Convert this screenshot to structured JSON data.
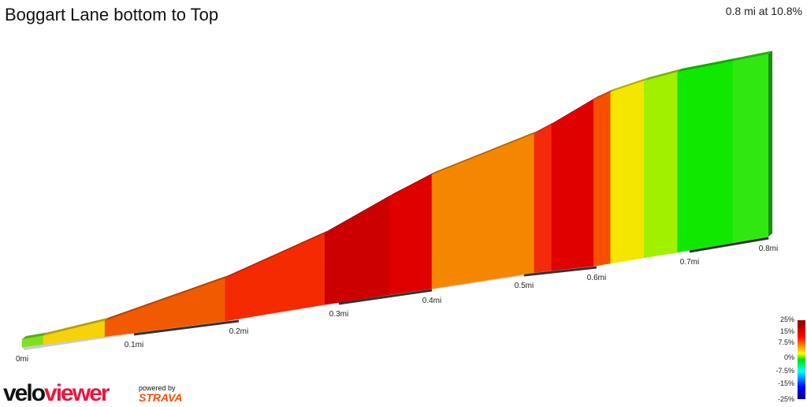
{
  "title": "Boggart Lane bottom to Top",
  "summary": "0.8 mi at 10.8%",
  "chart_data": {
    "type": "area",
    "x_unit": "mi",
    "x_ticks": [
      "0mi",
      "0.1mi",
      "0.2mi",
      "0.3mi",
      "0.4mi",
      "0.5mi",
      "0.6mi",
      "0.7mi",
      "0.8mi"
    ],
    "xlim": [
      0,
      0.8
    ],
    "segments": [
      {
        "start": 0,
        "end": 0.019,
        "gradient": 2,
        "color": "#7fe01c"
      },
      {
        "start": 0.019,
        "end": 0.074,
        "gradient": 6,
        "color": "#f5d20a"
      },
      {
        "start": 0.074,
        "end": 0.187,
        "gradient": 11,
        "color": "#f25a00"
      },
      {
        "start": 0.187,
        "end": 0.286,
        "gradient": 13,
        "color": "#f52a00"
      },
      {
        "start": 0.286,
        "end": 0.354,
        "gradient": 18,
        "color": "#cc0000"
      },
      {
        "start": 0.354,
        "end": 0.4,
        "gradient": 16,
        "color": "#e00000"
      },
      {
        "start": 0.4,
        "end": 0.514,
        "gradient": 10,
        "color": "#f58700"
      },
      {
        "start": 0.514,
        "end": 0.538,
        "gradient": 14,
        "color": "#f52a0a"
      },
      {
        "start": 0.538,
        "end": 0.596,
        "gradient": 16,
        "color": "#e00000"
      },
      {
        "start": 0.596,
        "end": 0.615,
        "gradient": 12,
        "color": "#f54f00"
      },
      {
        "start": 0.615,
        "end": 0.651,
        "gradient": 7,
        "color": "#f5e600"
      },
      {
        "start": 0.651,
        "end": 0.687,
        "gradient": 4,
        "color": "#a0f000"
      },
      {
        "start": 0.687,
        "end": 0.755,
        "gradient": 1,
        "color": "#10e800"
      },
      {
        "start": 0.755,
        "end": 0.8,
        "gradient": 1,
        "color": "#30e810"
      }
    ],
    "legend": {
      "labels": [
        "25%",
        "15%",
        "7.5%",
        "0%",
        "-7.5%",
        "-15%",
        "-25%"
      ]
    }
  },
  "branding": {
    "logo_a": "velo",
    "logo_b": "viewer",
    "powered": "powered by",
    "strava": "STRAVA"
  }
}
